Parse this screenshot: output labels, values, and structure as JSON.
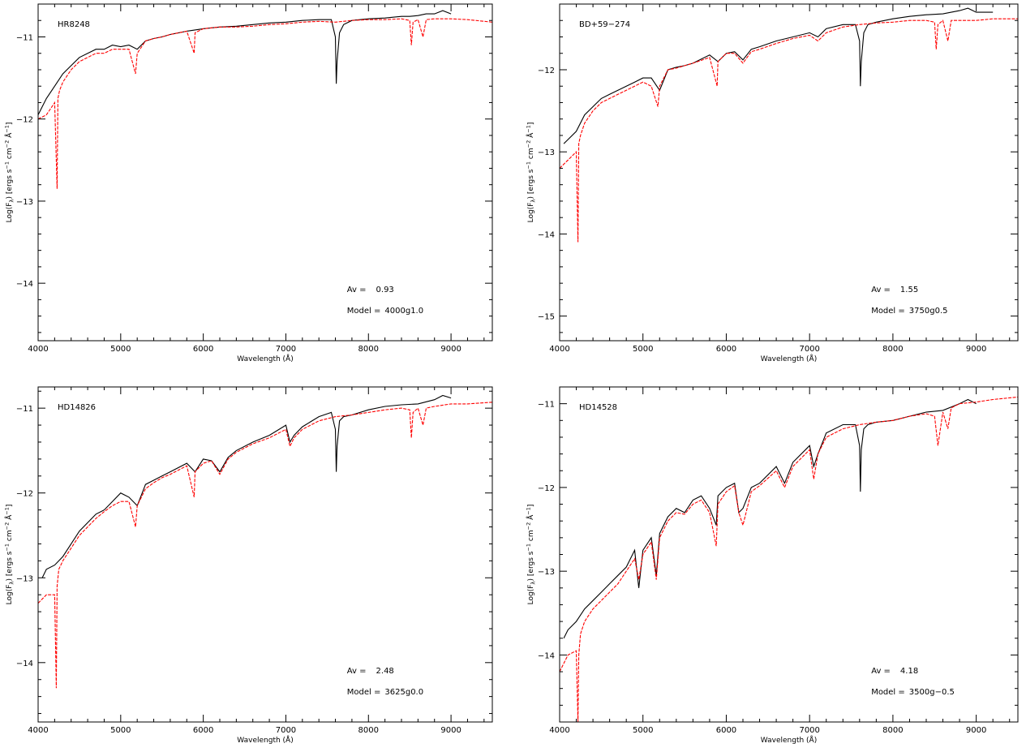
{
  "chart_data": [
    {
      "type": "line",
      "star": "HR8248",
      "xlabel": "Wavelength (Å)",
      "ylabel": "Log(F",
      "ylabel_sub": "λ",
      "ylabel_units": ") [ergs s",
      "ylabel_units2": " cm",
      "ylabel_units3": " Å",
      "ylabel_end": "]",
      "sup_minus1": "−1",
      "sup_minus2": "−2",
      "xlim": [
        4000,
        9500
      ],
      "ylim": [
        -14.7,
        -10.6
      ],
      "xticks": [
        4000,
        5000,
        6000,
        7000,
        8000,
        9000
      ],
      "xtick_labels": [
        "4000",
        "5000",
        "6000",
        "7000",
        "8000",
        "9000"
      ],
      "yticks": [
        -14,
        -13,
        -12,
        -11
      ],
      "ytick_labels": [
        "−14",
        "−13",
        "−12",
        "−11"
      ],
      "av_label": "Av =",
      "av_value": "0.93",
      "model_label": "Model =",
      "model_value": "4000g1.0",
      "series": [
        {
          "role": "observed",
          "color": "#000000",
          "dashed": false,
          "x": [
            4000,
            4100,
            4200,
            4300,
            4400,
            4500,
            4600,
            4700,
            4800,
            4900,
            5000,
            5100,
            5200,
            5300,
            5400,
            5500,
            5600,
            5800,
            6000,
            6200,
            6400,
            6600,
            6800,
            7000,
            7200,
            7400,
            7550,
            7600,
            7610,
            7620,
            7650,
            7700,
            7800,
            8000,
            8200,
            8400,
            8500,
            8600,
            8700,
            8800,
            8900,
            9000
          ],
          "y": [
            -11.95,
            -11.75,
            -11.6,
            -11.45,
            -11.35,
            -11.25,
            -11.2,
            -11.15,
            -11.15,
            -11.1,
            -11.12,
            -11.1,
            -11.15,
            -11.05,
            -11.02,
            -11.0,
            -10.97,
            -10.93,
            -10.9,
            -10.88,
            -10.87,
            -10.85,
            -10.83,
            -10.82,
            -10.8,
            -10.79,
            -10.79,
            -11.0,
            -11.57,
            -11.3,
            -10.95,
            -10.85,
            -10.8,
            -10.78,
            -10.77,
            -10.75,
            -10.75,
            -10.74,
            -10.72,
            -10.72,
            -10.68,
            -10.72
          ]
        },
        {
          "role": "model",
          "color": "#ff0000",
          "dashed": true,
          "x": [
            4000,
            4100,
            4200,
            4230,
            4240,
            4260,
            4300,
            4400,
            4500,
            4600,
            4700,
            4800,
            4900,
            5000,
            5100,
            5180,
            5200,
            5300,
            5400,
            5500,
            5600,
            5800,
            5890,
            5900,
            6000,
            6200,
            6400,
            6600,
            6800,
            7000,
            7200,
            7400,
            7600,
            7800,
            8000,
            8200,
            8400,
            8500,
            8520,
            8540,
            8600,
            8660,
            8700,
            8800,
            9000,
            9200,
            9500
          ],
          "y": [
            -12.0,
            -11.95,
            -11.8,
            -12.85,
            -11.75,
            -11.65,
            -11.55,
            -11.4,
            -11.3,
            -11.25,
            -11.2,
            -11.2,
            -11.15,
            -11.15,
            -11.15,
            -11.45,
            -11.2,
            -11.05,
            -11.02,
            -11.0,
            -10.97,
            -10.93,
            -11.2,
            -10.95,
            -10.9,
            -10.88,
            -10.88,
            -10.87,
            -10.85,
            -10.84,
            -10.82,
            -10.81,
            -10.82,
            -10.8,
            -10.79,
            -10.79,
            -10.78,
            -10.8,
            -11.1,
            -10.82,
            -10.79,
            -11.0,
            -10.79,
            -10.78,
            -10.78,
            -10.79,
            -10.82
          ]
        }
      ]
    },
    {
      "type": "line",
      "star": "BD+59−274",
      "xlabel": "Wavelength (Å)",
      "ylabel": "Log(F",
      "ylabel_sub": "λ",
      "ylabel_units": ") [ergs s",
      "ylabel_units2": " cm",
      "ylabel_units3": " Å",
      "ylabel_end": "]",
      "sup_minus1": "−1",
      "sup_minus2": "−2",
      "xlim": [
        4000,
        9500
      ],
      "ylim": [
        -15.3,
        -11.2
      ],
      "xticks": [
        4000,
        5000,
        6000,
        7000,
        8000,
        9000
      ],
      "xtick_labels": [
        "4000",
        "5000",
        "6000",
        "7000",
        "8000",
        "9000"
      ],
      "yticks": [
        -15,
        -14,
        -13,
        -12
      ],
      "ytick_labels": [
        "−15",
        "−14",
        "−13",
        "−12"
      ],
      "av_label": "Av =",
      "av_value": "1.55",
      "model_label": "Model =",
      "model_value": "3750g0.5",
      "series": [
        {
          "role": "observed",
          "color": "#000000",
          "dashed": false,
          "x": [
            4050,
            4100,
            4200,
            4300,
            4400,
            4500,
            4600,
            4700,
            4800,
            4900,
            5000,
            5100,
            5200,
            5300,
            5400,
            5500,
            5600,
            5800,
            5900,
            6000,
            6100,
            6200,
            6300,
            6400,
            6600,
            6800,
            7000,
            7100,
            7200,
            7400,
            7550,
            7600,
            7610,
            7620,
            7650,
            7700,
            7800,
            8000,
            8200,
            8400,
            8600,
            8800,
            8900,
            9000,
            9200
          ],
          "y": [
            -12.9,
            -12.85,
            -12.75,
            -12.55,
            -12.45,
            -12.35,
            -12.3,
            -12.25,
            -12.2,
            -12.15,
            -12.1,
            -12.1,
            -12.25,
            -12.0,
            -11.97,
            -11.95,
            -11.92,
            -11.82,
            -11.9,
            -11.8,
            -11.78,
            -11.88,
            -11.75,
            -11.72,
            -11.65,
            -11.6,
            -11.55,
            -11.6,
            -11.5,
            -11.45,
            -11.45,
            -11.65,
            -12.2,
            -11.9,
            -11.55,
            -11.45,
            -11.42,
            -11.38,
            -11.35,
            -11.33,
            -11.32,
            -11.28,
            -11.25,
            -11.3,
            -11.3
          ]
        },
        {
          "role": "model",
          "color": "#ff0000",
          "dashed": true,
          "x": [
            4000,
            4100,
            4200,
            4220,
            4230,
            4250,
            4300,
            4400,
            4500,
            4600,
            4700,
            4800,
            4900,
            5000,
            5100,
            5180,
            5200,
            5300,
            5400,
            5500,
            5600,
            5800,
            5890,
            5900,
            6000,
            6100,
            6200,
            6300,
            6400,
            6600,
            6800,
            7000,
            7100,
            7200,
            7400,
            7600,
            7800,
            8000,
            8200,
            8400,
            8500,
            8520,
            8540,
            8600,
            8660,
            8700,
            8800,
            9000,
            9200,
            9500
          ],
          "y": [
            -13.2,
            -13.1,
            -13.0,
            -14.1,
            -12.9,
            -12.8,
            -12.65,
            -12.5,
            -12.4,
            -12.35,
            -12.3,
            -12.25,
            -12.2,
            -12.15,
            -12.2,
            -12.45,
            -12.2,
            -12.0,
            -11.98,
            -11.95,
            -11.92,
            -11.85,
            -12.2,
            -11.9,
            -11.8,
            -11.8,
            -11.92,
            -11.78,
            -11.75,
            -11.68,
            -11.62,
            -11.58,
            -11.65,
            -11.55,
            -11.48,
            -11.45,
            -11.43,
            -11.42,
            -11.4,
            -11.4,
            -11.42,
            -11.75,
            -11.45,
            -11.4,
            -11.65,
            -11.4,
            -11.4,
            -11.4,
            -11.38,
            -11.38
          ]
        }
      ]
    },
    {
      "type": "line",
      "star": "HD14826",
      "xlabel": "Wavelength (Å)",
      "ylabel": "Log(F",
      "ylabel_sub": "λ",
      "ylabel_units": ") [ergs s",
      "ylabel_units2": " cm",
      "ylabel_units3": " Å",
      "ylabel_end": "]",
      "sup_minus1": "−1",
      "sup_minus2": "−2",
      "xlim": [
        4000,
        9500
      ],
      "ylim": [
        -14.7,
        -10.75
      ],
      "xticks": [
        4000,
        5000,
        6000,
        7000,
        8000,
        9000
      ],
      "xtick_labels": [
        "4000",
        "5000",
        "6000",
        "7000",
        "8000",
        "9000"
      ],
      "yticks": [
        -14,
        -13,
        -12,
        -11
      ],
      "ytick_labels": [
        "−14",
        "−13",
        "−12",
        "−11"
      ],
      "av_label": "Av =",
      "av_value": "2.48",
      "model_label": "Model =",
      "model_value": "3625g0.0",
      "series": [
        {
          "role": "observed",
          "color": "#000000",
          "dashed": false,
          "x": [
            4050,
            4100,
            4200,
            4300,
            4400,
            4500,
            4600,
            4700,
            4800,
            4900,
            5000,
            5100,
            5200,
            5300,
            5400,
            5500,
            5600,
            5800,
            5900,
            6000,
            6100,
            6200,
            6300,
            6400,
            6600,
            6800,
            7000,
            7050,
            7100,
            7200,
            7400,
            7550,
            7600,
            7610,
            7620,
            7650,
            7700,
            7800,
            8000,
            8200,
            8400,
            8600,
            8800,
            8900,
            9000
          ],
          "y": [
            -13.0,
            -12.9,
            -12.85,
            -12.75,
            -12.6,
            -12.45,
            -12.35,
            -12.25,
            -12.2,
            -12.1,
            -12.0,
            -12.05,
            -12.15,
            -11.9,
            -11.85,
            -11.8,
            -11.75,
            -11.65,
            -11.75,
            -11.6,
            -11.62,
            -11.75,
            -11.58,
            -11.5,
            -11.4,
            -11.32,
            -11.2,
            -11.4,
            -11.32,
            -11.22,
            -11.1,
            -11.05,
            -11.25,
            -11.75,
            -11.45,
            -11.15,
            -11.1,
            -11.08,
            -11.02,
            -10.98,
            -10.96,
            -10.95,
            -10.9,
            -10.85,
            -10.88
          ]
        },
        {
          "role": "model",
          "color": "#ff0000",
          "dashed": true,
          "x": [
            4000,
            4100,
            4200,
            4220,
            4230,
            4250,
            4300,
            4400,
            4500,
            4600,
            4700,
            4800,
            4900,
            5000,
            5100,
            5180,
            5200,
            5300,
            5400,
            5500,
            5600,
            5800,
            5890,
            5900,
            6000,
            6100,
            6200,
            6300,
            6400,
            6600,
            6800,
            7000,
            7050,
            7100,
            7200,
            7400,
            7600,
            7800,
            8000,
            8200,
            8400,
            8500,
            8520,
            8540,
            8600,
            8660,
            8700,
            8800,
            9000,
            9200,
            9500
          ],
          "y": [
            -13.3,
            -13.2,
            -13.2,
            -14.3,
            -13.1,
            -12.9,
            -12.8,
            -12.65,
            -12.5,
            -12.4,
            -12.3,
            -12.22,
            -12.15,
            -12.1,
            -12.1,
            -12.4,
            -12.15,
            -11.95,
            -11.88,
            -11.82,
            -11.78,
            -11.68,
            -12.05,
            -11.75,
            -11.65,
            -11.62,
            -11.78,
            -11.6,
            -11.52,
            -11.42,
            -11.35,
            -11.25,
            -11.45,
            -11.35,
            -11.25,
            -11.15,
            -11.1,
            -11.08,
            -11.05,
            -11.02,
            -11.0,
            -11.02,
            -11.35,
            -11.05,
            -11.0,
            -11.2,
            -11.0,
            -10.98,
            -10.95,
            -10.95,
            -10.93
          ]
        }
      ]
    },
    {
      "type": "line",
      "star": "HD14528",
      "xlabel": "Wavelength (Å)",
      "ylabel": "Log(F",
      "ylabel_sub": "λ",
      "ylabel_units": ") [ergs s",
      "ylabel_units2": " cm",
      "ylabel_units3": " Å",
      "ylabel_end": "]",
      "sup_minus1": "−1",
      "sup_minus2": "−2",
      "xlim": [
        4000,
        9500
      ],
      "ylim": [
        -14.8,
        -10.8
      ],
      "xticks": [
        4000,
        5000,
        6000,
        7000,
        8000,
        9000
      ],
      "xtick_labels": [
        "4000",
        "5000",
        "6000",
        "7000",
        "8000",
        "9000"
      ],
      "yticks": [
        -14,
        -13,
        -12,
        -11
      ],
      "ytick_labels": [
        "−14",
        "−13",
        "−12",
        "−11"
      ],
      "av_label": "Av =",
      "av_value": "4.18",
      "model_label": "Model =",
      "model_value": "3500g−0.5",
      "series": [
        {
          "role": "observed",
          "color": "#000000",
          "dashed": false,
          "x": [
            4050,
            4100,
            4200,
            4300,
            4400,
            4500,
            4600,
            4700,
            4800,
            4900,
            4950,
            5000,
            5100,
            5160,
            5200,
            5300,
            5400,
            5500,
            5600,
            5700,
            5800,
            5880,
            5900,
            6000,
            6100,
            6150,
            6200,
            6300,
            6400,
            6600,
            6700,
            6800,
            7000,
            7050,
            7100,
            7200,
            7400,
            7550,
            7600,
            7610,
            7620,
            7650,
            7700,
            7800,
            8000,
            8200,
            8400,
            8600,
            8800,
            8900,
            9000
          ],
          "y": [
            -13.8,
            -13.7,
            -13.6,
            -13.45,
            -13.35,
            -13.25,
            -13.15,
            -13.05,
            -12.95,
            -12.75,
            -13.2,
            -12.75,
            -12.6,
            -13.05,
            -12.55,
            -12.35,
            -12.25,
            -12.3,
            -12.15,
            -12.1,
            -12.25,
            -12.45,
            -12.1,
            -12.0,
            -11.95,
            -12.3,
            -12.25,
            -12.0,
            -11.95,
            -11.75,
            -11.95,
            -11.7,
            -11.5,
            -11.75,
            -11.6,
            -11.35,
            -11.25,
            -11.25,
            -11.5,
            -12.05,
            -11.55,
            -11.3,
            -11.25,
            -11.22,
            -11.2,
            -11.15,
            -11.1,
            -11.08,
            -11.0,
            -10.95,
            -11.0
          ]
        },
        {
          "role": "model",
          "color": "#ff0000",
          "dashed": true,
          "x": [
            4000,
            4100,
            4200,
            4220,
            4230,
            4250,
            4300,
            4400,
            4500,
            4600,
            4700,
            4800,
            4900,
            4950,
            5000,
            5100,
            5160,
            5200,
            5300,
            5400,
            5500,
            5600,
            5700,
            5800,
            5880,
            5900,
            6000,
            6100,
            6150,
            6200,
            6300,
            6400,
            6600,
            6700,
            6800,
            7000,
            7050,
            7100,
            7200,
            7400,
            7600,
            7800,
            8000,
            8200,
            8400,
            8500,
            8540,
            8600,
            8660,
            8700,
            8800,
            9000,
            9200,
            9500
          ],
          "y": [
            -14.2,
            -14.0,
            -13.95,
            -14.8,
            -14.0,
            -13.75,
            -13.6,
            -13.45,
            -13.35,
            -13.25,
            -13.15,
            -13.0,
            -12.85,
            -13.1,
            -12.8,
            -12.65,
            -13.1,
            -12.6,
            -12.4,
            -12.3,
            -12.32,
            -12.2,
            -12.15,
            -12.3,
            -12.7,
            -12.2,
            -12.05,
            -11.98,
            -12.3,
            -12.45,
            -12.05,
            -11.98,
            -11.8,
            -12.0,
            -11.75,
            -11.55,
            -11.9,
            -11.6,
            -11.4,
            -11.3,
            -11.25,
            -11.22,
            -11.2,
            -11.15,
            -11.12,
            -11.15,
            -11.5,
            -11.1,
            -11.3,
            -11.05,
            -11.0,
            -10.98,
            -10.95,
            -10.92
          ]
        }
      ]
    }
  ]
}
